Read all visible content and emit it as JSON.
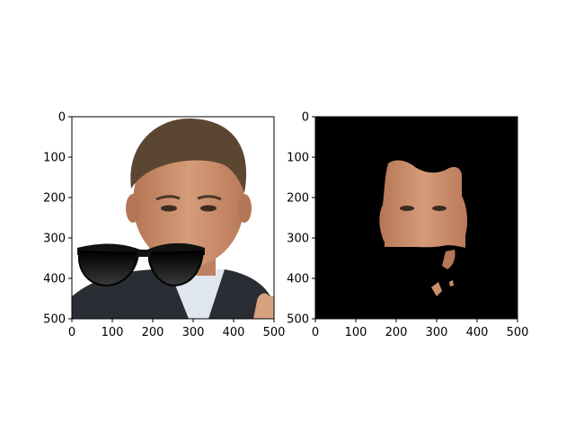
{
  "chart_data": [
    {
      "type": "image",
      "title": "",
      "xlabel": "",
      "ylabel": "",
      "xlim": [
        0,
        500
      ],
      "ylim": [
        500,
        0
      ],
      "xticks": [
        0,
        100,
        200,
        300,
        400,
        500
      ],
      "yticks": [
        0,
        100,
        200,
        300,
        400,
        500
      ],
      "xtick_labels": [
        "0",
        "100",
        "200",
        "300",
        "400",
        "500"
      ],
      "ytick_labels": [
        "0",
        "100",
        "200",
        "300",
        "400",
        "500"
      ],
      "content": "portrait-with-sunglasses-overlay",
      "background": "#ffffff"
    },
    {
      "type": "image",
      "title": "",
      "xlabel": "",
      "ylabel": "",
      "xlim": [
        0,
        500
      ],
      "ylim": [
        500,
        0
      ],
      "xticks": [
        0,
        100,
        200,
        300,
        400,
        500
      ],
      "yticks": [
        0,
        100,
        200,
        300,
        400,
        500
      ],
      "xtick_labels": [
        "0",
        "100",
        "200",
        "300",
        "400",
        "500"
      ],
      "ytick_labels": [
        "0",
        "100",
        "200",
        "300",
        "400",
        "500"
      ],
      "content": "skin-segmentation-mask",
      "background": "#000000"
    }
  ],
  "colors": {
    "skin": "#c98f6d",
    "hair": "#5b4632",
    "suit": "#2a2d33",
    "shirt": "#dfe6ee",
    "glasses": "#111111",
    "mask_bg": "#000000",
    "photo_bg": "#ffffff"
  }
}
